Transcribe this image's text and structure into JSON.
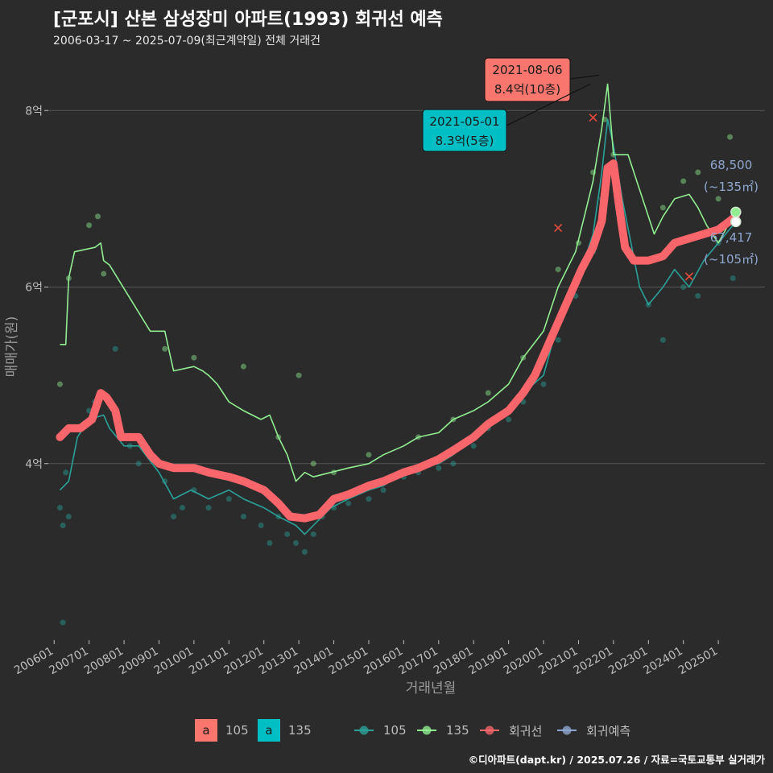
{
  "title": "[군포시] 산본 삼성장미 아파트(1993) 회귀선 예측",
  "subtitle": "2006-03-17 ~ 2025-07-09(최근계약일) 전체 거래건",
  "caption": "©디아파트(dapt.kr) / 2025.07.26 / 자료=국토교통부 실거래가",
  "colors": {
    "s105": "#2aa198",
    "s135": "#90ee90",
    "reg": "#f8656a",
    "pred": "#8fa6cf",
    "bg": "#2b2b2b",
    "grid": "#555555",
    "axis_text": "#bdbdbd"
  },
  "legend": {
    "labels": [
      {
        "mark": "a",
        "label": "105",
        "color": "#f8766d"
      },
      {
        "mark": "a",
        "label": "135",
        "color": "#00bfc4"
      }
    ],
    "lines": [
      {
        "label": "105",
        "color": "#2aa198"
      },
      {
        "label": "135",
        "color": "#90ee90"
      },
      {
        "label": "회귀선",
        "color": "#f8656a"
      },
      {
        "label": "회귀예측",
        "color": "#8fa6cf"
      }
    ]
  },
  "chart_data": {
    "type": "line",
    "xlabel": "거래년월",
    "ylabel": "매매가(원)",
    "x_range": [
      "2005-11",
      "2026-05"
    ],
    "y_range": [
      2.0,
      8.65
    ],
    "y_unit": "억",
    "y_ticks": [
      {
        "value": 4,
        "label": "4억"
      },
      {
        "value": 6,
        "label": "6억"
      },
      {
        "value": 8,
        "label": "8억"
      }
    ],
    "x_ticks": [
      "200601",
      "200701",
      "200801",
      "200901",
      "201001",
      "201101",
      "201201",
      "201301",
      "201401",
      "201501",
      "201601",
      "201701",
      "201801",
      "201901",
      "202001",
      "202101",
      "202201",
      "202301",
      "202401",
      "202501"
    ],
    "grid": true,
    "series": [
      {
        "name": "105",
        "type": "line",
        "color": "#2aa198",
        "points": [
          [
            "2006-03",
            3.7
          ],
          [
            "2006-06",
            3.8
          ],
          [
            "2006-09",
            4.3
          ],
          [
            "2007-01",
            4.5
          ],
          [
            "2007-06",
            4.55
          ],
          [
            "2007-08",
            4.4
          ],
          [
            "2008-01",
            4.2
          ],
          [
            "2008-06",
            4.2
          ],
          [
            "2009-01",
            3.9
          ],
          [
            "2009-06",
            3.6
          ],
          [
            "2009-12",
            3.7
          ],
          [
            "2010-06",
            3.6
          ],
          [
            "2011-01",
            3.7
          ],
          [
            "2011-06",
            3.6
          ],
          [
            "2012-01",
            3.5
          ],
          [
            "2012-06",
            3.4
          ],
          [
            "2012-12",
            3.3
          ],
          [
            "2013-03",
            3.2
          ],
          [
            "2013-06",
            3.3
          ],
          [
            "2013-12",
            3.5
          ],
          [
            "2014-06",
            3.6
          ],
          [
            "2015-01",
            3.7
          ],
          [
            "2015-06",
            3.75
          ],
          [
            "2016-01",
            3.9
          ],
          [
            "2016-06",
            3.95
          ],
          [
            "2017-01",
            4.0
          ],
          [
            "2017-06",
            4.1
          ],
          [
            "2018-01",
            4.3
          ],
          [
            "2018-06",
            4.45
          ],
          [
            "2019-01",
            4.6
          ],
          [
            "2019-06",
            4.8
          ],
          [
            "2020-01",
            5.0
          ],
          [
            "2020-06",
            5.6
          ],
          [
            "2020-12",
            6.0
          ],
          [
            "2021-06",
            6.6
          ],
          [
            "2021-09",
            7.3
          ],
          [
            "2021-11",
            7.9
          ],
          [
            "2022-01",
            7.6
          ],
          [
            "2022-04",
            7.0
          ],
          [
            "2022-07",
            6.5
          ],
          [
            "2022-10",
            6.0
          ],
          [
            "2023-01",
            5.8
          ],
          [
            "2023-06",
            6.0
          ],
          [
            "2023-10",
            6.2
          ],
          [
            "2024-03",
            6.0
          ],
          [
            "2024-08",
            6.3
          ],
          [
            "2025-01",
            6.5
          ],
          [
            "2025-06",
            6.7
          ]
        ]
      },
      {
        "name": "135",
        "type": "line",
        "color": "#90ee90",
        "points": [
          [
            "2006-03",
            5.35
          ],
          [
            "2006-05",
            5.35
          ],
          [
            "2006-06",
            6.1
          ],
          [
            "2006-08",
            6.4
          ],
          [
            "2007-03",
            6.45
          ],
          [
            "2007-05",
            6.5
          ],
          [
            "2007-06",
            6.3
          ],
          [
            "2007-08",
            6.25
          ],
          [
            "2008-10",
            5.5
          ],
          [
            "2009-03",
            5.5
          ],
          [
            "2009-04",
            5.35
          ],
          [
            "2009-06",
            5.05
          ],
          [
            "2010-01",
            5.1
          ],
          [
            "2010-04",
            5.05
          ],
          [
            "2010-06",
            5.0
          ],
          [
            "2010-09",
            4.9
          ],
          [
            "2011-01",
            4.7
          ],
          [
            "2011-06",
            4.6
          ],
          [
            "2011-12",
            4.5
          ],
          [
            "2012-03",
            4.55
          ],
          [
            "2012-06",
            4.3
          ],
          [
            "2012-09",
            4.1
          ],
          [
            "2012-12",
            3.8
          ],
          [
            "2013-03",
            3.9
          ],
          [
            "2013-06",
            3.85
          ],
          [
            "2013-12",
            3.9
          ],
          [
            "2014-06",
            3.95
          ],
          [
            "2015-01",
            4.0
          ],
          [
            "2015-06",
            4.1
          ],
          [
            "2016-01",
            4.2
          ],
          [
            "2016-06",
            4.3
          ],
          [
            "2017-01",
            4.35
          ],
          [
            "2017-06",
            4.5
          ],
          [
            "2018-01",
            4.6
          ],
          [
            "2018-06",
            4.7
          ],
          [
            "2019-01",
            4.9
          ],
          [
            "2019-06",
            5.2
          ],
          [
            "2020-01",
            5.5
          ],
          [
            "2020-06",
            6.0
          ],
          [
            "2020-12",
            6.4
          ],
          [
            "2021-03",
            6.8
          ],
          [
            "2021-06",
            7.2
          ],
          [
            "2021-09",
            7.8
          ],
          [
            "2021-11",
            8.3
          ],
          [
            "2022-01",
            7.5
          ],
          [
            "2022-06",
            7.5
          ],
          [
            "2023-03",
            6.6
          ],
          [
            "2023-06",
            6.8
          ],
          [
            "2023-10",
            7.0
          ],
          [
            "2024-03",
            7.05
          ],
          [
            "2024-06",
            6.9
          ],
          [
            "2024-09",
            6.7
          ],
          [
            "2025-01",
            6.5
          ],
          [
            "2025-06",
            6.8
          ]
        ]
      },
      {
        "name": "회귀선",
        "type": "line",
        "color": "#f8656a",
        "points": [
          [
            "2006-03",
            4.3
          ],
          [
            "2006-06",
            4.4
          ],
          [
            "2006-10",
            4.4
          ],
          [
            "2007-02",
            4.5
          ],
          [
            "2007-05",
            4.8
          ],
          [
            "2007-07",
            4.75
          ],
          [
            "2007-10",
            4.6
          ],
          [
            "2007-12",
            4.3
          ],
          [
            "2008-06",
            4.3
          ],
          [
            "2008-10",
            4.1
          ],
          [
            "2009-01",
            4.0
          ],
          [
            "2009-06",
            3.95
          ],
          [
            "2010-01",
            3.95
          ],
          [
            "2010-06",
            3.9
          ],
          [
            "2011-01",
            3.85
          ],
          [
            "2011-06",
            3.8
          ],
          [
            "2012-01",
            3.7
          ],
          [
            "2012-06",
            3.55
          ],
          [
            "2012-10",
            3.4
          ],
          [
            "2013-03",
            3.38
          ],
          [
            "2013-08",
            3.42
          ],
          [
            "2014-01",
            3.6
          ],
          [
            "2014-06",
            3.65
          ],
          [
            "2015-01",
            3.75
          ],
          [
            "2015-06",
            3.8
          ],
          [
            "2016-01",
            3.9
          ],
          [
            "2016-06",
            3.95
          ],
          [
            "2017-01",
            4.05
          ],
          [
            "2017-06",
            4.15
          ],
          [
            "2018-01",
            4.3
          ],
          [
            "2018-06",
            4.45
          ],
          [
            "2019-01",
            4.6
          ],
          [
            "2019-06",
            4.8
          ],
          [
            "2019-10",
            5.0
          ],
          [
            "2020-02",
            5.3
          ],
          [
            "2020-06",
            5.6
          ],
          [
            "2020-10",
            5.9
          ],
          [
            "2021-02",
            6.2
          ],
          [
            "2021-06",
            6.45
          ],
          [
            "2021-09",
            6.75
          ],
          [
            "2021-11",
            7.35
          ],
          [
            "2022-01",
            7.4
          ],
          [
            "2022-03",
            6.9
          ],
          [
            "2022-05",
            6.45
          ],
          [
            "2022-08",
            6.3
          ],
          [
            "2023-01",
            6.3
          ],
          [
            "2023-06",
            6.35
          ],
          [
            "2023-10",
            6.5
          ],
          [
            "2024-03",
            6.55
          ],
          [
            "2024-08",
            6.6
          ],
          [
            "2025-01",
            6.65
          ],
          [
            "2025-07",
            6.8
          ]
        ]
      }
    ],
    "scatter": [
      {
        "name": "105",
        "color": "#2aa198",
        "points": [
          [
            "2006-03",
            3.5
          ],
          [
            "2006-04",
            3.3
          ],
          [
            "2006-05",
            3.9
          ],
          [
            "2006-06",
            3.4
          ],
          [
            "2006-04",
            2.2
          ],
          [
            "2006-09",
            4.4
          ],
          [
            "2007-01",
            4.6
          ],
          [
            "2007-03",
            4.7
          ],
          [
            "2007-10",
            5.3
          ],
          [
            "2008-03",
            4.2
          ],
          [
            "2008-06",
            4.0
          ],
          [
            "2009-03",
            3.8
          ],
          [
            "2009-06",
            3.4
          ],
          [
            "2009-09",
            3.5
          ],
          [
            "2010-01",
            3.7
          ],
          [
            "2010-06",
            3.5
          ],
          [
            "2011-01",
            3.6
          ],
          [
            "2011-06",
            3.4
          ],
          [
            "2011-12",
            3.3
          ],
          [
            "2012-03",
            3.1
          ],
          [
            "2012-06",
            3.4
          ],
          [
            "2012-09",
            3.2
          ],
          [
            "2012-12",
            3.1
          ],
          [
            "2013-03",
            3.0
          ],
          [
            "2013-06",
            3.2
          ],
          [
            "2013-09",
            3.4
          ],
          [
            "2014-01",
            3.5
          ],
          [
            "2014-06",
            3.55
          ],
          [
            "2015-01",
            3.6
          ],
          [
            "2015-06",
            3.7
          ],
          [
            "2016-01",
            3.85
          ],
          [
            "2016-06",
            3.9
          ],
          [
            "2017-01",
            3.95
          ],
          [
            "2017-06",
            4.0
          ],
          [
            "2018-01",
            4.2
          ],
          [
            "2018-06",
            4.4
          ],
          [
            "2019-01",
            4.5
          ],
          [
            "2019-06",
            4.7
          ],
          [
            "2020-01",
            4.9
          ],
          [
            "2020-06",
            5.4
          ],
          [
            "2020-12",
            5.9
          ],
          [
            "2021-06",
            6.4
          ],
          [
            "2021-09",
            7.0
          ],
          [
            "2022-01",
            7.4
          ],
          [
            "2022-06",
            6.4
          ],
          [
            "2023-01",
            5.8
          ],
          [
            "2023-06",
            5.4
          ],
          [
            "2024-01",
            6.0
          ],
          [
            "2024-06",
            5.9
          ],
          [
            "2025-01",
            6.5
          ],
          [
            "2025-06",
            6.1
          ]
        ]
      },
      {
        "name": "135",
        "color": "#90ee90",
        "points": [
          [
            "2006-03",
            4.9
          ],
          [
            "2006-06",
            6.1
          ],
          [
            "2007-01",
            6.7
          ],
          [
            "2007-04",
            6.8
          ],
          [
            "2007-06",
            6.15
          ],
          [
            "2009-03",
            5.3
          ],
          [
            "2010-01",
            5.2
          ],
          [
            "2011-06",
            5.1
          ],
          [
            "2012-06",
            4.3
          ],
          [
            "2013-01",
            5.0
          ],
          [
            "2013-06",
            4.0
          ],
          [
            "2014-01",
            3.9
          ],
          [
            "2015-01",
            4.1
          ],
          [
            "2016-06",
            4.3
          ],
          [
            "2017-06",
            4.5
          ],
          [
            "2018-06",
            4.8
          ],
          [
            "2019-06",
            5.2
          ],
          [
            "2020-06",
            6.2
          ],
          [
            "2021-01",
            6.5
          ],
          [
            "2021-06",
            7.3
          ],
          [
            "2021-10",
            7.9
          ],
          [
            "2022-01",
            7.5
          ],
          [
            "2023-06",
            6.9
          ],
          [
            "2024-01",
            7.2
          ],
          [
            "2024-06",
            7.3
          ],
          [
            "2025-01",
            7.0
          ],
          [
            "2025-05",
            7.7
          ]
        ]
      }
    ],
    "cross_marks": [
      {
        "color": "#e74c3c",
        "points": [
          [
            "2020-06",
            6.67
          ],
          [
            "2021-06",
            7.92
          ],
          [
            "2024-03",
            6.12
          ]
        ]
      }
    ],
    "predictions": [
      {
        "series": "135",
        "x": "2025-07",
        "y": 6.85,
        "color": "#90ee90"
      },
      {
        "series": "105",
        "x": "2025-07",
        "y": 6.74,
        "color": "#ffffff"
      }
    ],
    "annotations": [
      {
        "x": "2021-08",
        "y": 8.4,
        "line1": "2021-08-06",
        "line2": "8.4억(10층)",
        "fill": "#f8766d",
        "text_color": "#1a1a1a"
      },
      {
        "x": "2021-05",
        "y": 8.3,
        "line1": "2021-05-01",
        "line2": "8.3억(5층)",
        "fill": "#00bfc4",
        "text_color": "#1a1a1a"
      }
    ],
    "pred_labels": [
      {
        "value": "68,500",
        "area": "(~135㎡)"
      },
      {
        "value": "67,417",
        "area": "(~105㎡)"
      }
    ]
  }
}
